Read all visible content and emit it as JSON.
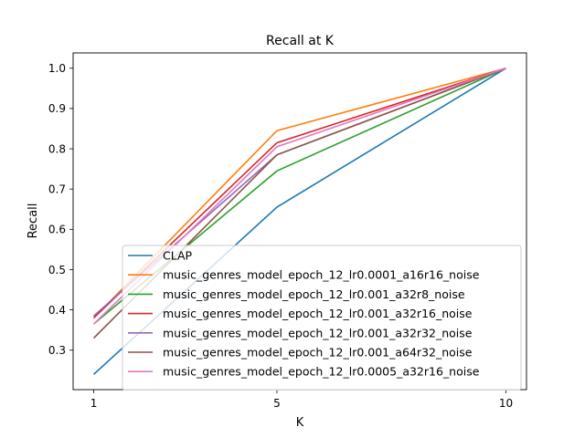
{
  "chart_data": {
    "type": "line",
    "title": "Recall at K",
    "xlabel": "K",
    "ylabel": "Recall",
    "x": [
      1,
      5,
      10
    ],
    "xticks": [
      "1",
      "5",
      "10"
    ],
    "xlim": [
      0.55,
      10.45
    ],
    "ylim": [
      0.202,
      1.038
    ],
    "yticks": [
      "0.3",
      "0.4",
      "0.5",
      "0.6",
      "0.7",
      "0.8",
      "0.9",
      "1.0"
    ],
    "grid": false,
    "legend_position": "lower-right",
    "series": [
      {
        "name": "CLAP",
        "color": "#1f77b4",
        "values": [
          0.24,
          0.655,
          1.0
        ]
      },
      {
        "name": "music_genres_model_epoch_12_lr0.0001_a16r16_noise",
        "color": "#ff7f0e",
        "values": [
          0.38,
          0.845,
          1.0
        ]
      },
      {
        "name": "music_genres_model_epoch_12_lr0.001_a32r8_noise",
        "color": "#2ca02c",
        "values": [
          0.365,
          0.745,
          1.0
        ]
      },
      {
        "name": "music_genres_model_epoch_12_lr0.001_a32r16_noise",
        "color": "#d62728",
        "values": [
          0.38,
          0.815,
          1.0
        ]
      },
      {
        "name": "music_genres_model_epoch_12_lr0.001_a32r32_noise",
        "color": "#9467bd",
        "values": [
          0.385,
          0.785,
          1.0
        ]
      },
      {
        "name": "music_genres_model_epoch_12_lr0.001_a64r32_noise",
        "color": "#8c564b",
        "values": [
          0.33,
          0.785,
          1.0
        ]
      },
      {
        "name": "music_genres_model_epoch_12_lr0.0005_a32r16_noise",
        "color": "#e377c2",
        "values": [
          0.365,
          0.805,
          1.0
        ]
      }
    ]
  }
}
